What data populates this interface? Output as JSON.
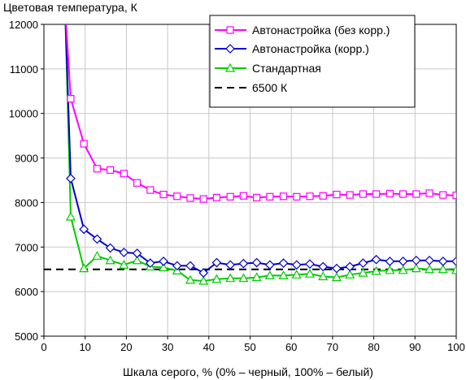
{
  "chart_data": {
    "type": "line",
    "title": "",
    "ylabel": "Цветовая температура, К",
    "xlabel": "Шкала серого, % (0% – черный, 100% – белый)",
    "xlim": [
      0,
      100
    ],
    "ylim": [
      5000,
      12000
    ],
    "xticks": [
      0,
      10,
      20,
      30,
      40,
      50,
      60,
      70,
      80,
      90,
      100
    ],
    "yticks": [
      5000,
      6000,
      7000,
      8000,
      9000,
      10000,
      11000,
      12000
    ],
    "xtick_labels": [
      "0",
      "10",
      "20",
      "30",
      "40",
      "50",
      "60",
      "70",
      "80",
      "90",
      "100"
    ],
    "ytick_labels": [
      "5000",
      "6000",
      "7000",
      "8000",
      "9000",
      "10000",
      "11000",
      "12000"
    ],
    "legend_position": "top-right",
    "series": [
      {
        "name": "Автонастройка (без корр.)",
        "color": "#ff00ff",
        "marker": "square",
        "x": [
          6.5,
          9.7,
          12.9,
          16.1,
          19.4,
          22.6,
          25.8,
          29,
          32.3,
          35.5,
          38.7,
          41.9,
          45.2,
          48.4,
          51.6,
          54.8,
          58.1,
          61.3,
          64.5,
          67.7,
          71,
          74.2,
          77.4,
          80.6,
          83.9,
          87.1,
          90.3,
          93.5,
          96.8,
          100
        ],
        "y": [
          10330,
          9320,
          8760,
          8730,
          8650,
          8440,
          8280,
          8180,
          8140,
          8100,
          8080,
          8110,
          8130,
          8150,
          8110,
          8130,
          8140,
          8130,
          8140,
          8150,
          8180,
          8170,
          8190,
          8190,
          8200,
          8190,
          8190,
          8210,
          8170,
          8160
        ]
      },
      {
        "name": "Автонастройка (корр.)",
        "color": "#0000cc",
        "marker": "diamond",
        "x": [
          6.5,
          9.7,
          12.9,
          16.1,
          19.4,
          22.6,
          25.8,
          29,
          32.3,
          35.5,
          38.7,
          41.9,
          45.2,
          48.4,
          51.6,
          54.8,
          58.1,
          61.3,
          64.5,
          67.7,
          71,
          74.2,
          77.4,
          80.6,
          83.9,
          87.1,
          90.3,
          93.5,
          96.8,
          100
        ],
        "y": [
          8540,
          7400,
          7180,
          6980,
          6880,
          6860,
          6640,
          6680,
          6580,
          6580,
          6420,
          6650,
          6600,
          6630,
          6650,
          6600,
          6640,
          6600,
          6620,
          6560,
          6520,
          6560,
          6640,
          6720,
          6680,
          6680,
          6700,
          6700,
          6680,
          6680
        ]
      },
      {
        "name": "Стандартная",
        "color": "#00cc00",
        "marker": "triangle",
        "x": [
          6.5,
          9.7,
          12.9,
          16.1,
          19.4,
          22.6,
          25.8,
          29,
          32.3,
          35.5,
          38.7,
          41.9,
          45.2,
          48.4,
          51.6,
          54.8,
          58.1,
          61.3,
          64.5,
          67.7,
          71,
          74.2,
          77.4,
          80.6,
          83.9,
          87.1,
          90.3,
          93.5,
          96.8,
          100
        ],
        "y": [
          7680,
          6520,
          6800,
          6700,
          6600,
          6700,
          6560,
          6540,
          6470,
          6260,
          6240,
          6280,
          6300,
          6300,
          6320,
          6360,
          6360,
          6380,
          6400,
          6340,
          6320,
          6380,
          6420,
          6460,
          6480,
          6480,
          6520,
          6500,
          6500,
          6480
        ]
      },
      {
        "name": "6500 К",
        "color": "#000000",
        "style": "dashed",
        "x": [
          0,
          100
        ],
        "y": [
          6500,
          6500
        ]
      }
    ]
  }
}
